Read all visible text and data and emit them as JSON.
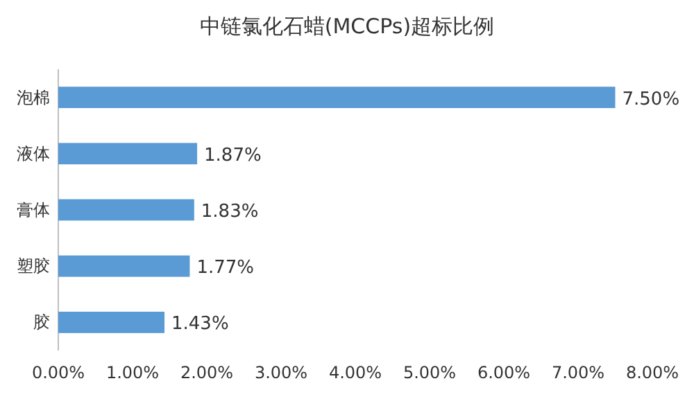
{
  "chart_data": {
    "type": "bar",
    "orientation": "horizontal",
    "title": "中链氯化石蜡(MCCPs)超标比例",
    "categories": [
      "泡棉",
      "液体",
      "膏体",
      "塑胶",
      "胶"
    ],
    "values": [
      7.5,
      1.87,
      1.83,
      1.77,
      1.43
    ],
    "color": "#5b9bd5",
    "value_labels": [
      "7.50%",
      "1.87%",
      "1.83%",
      "1.77%",
      "1.43%"
    ],
    "xlim": [
      0,
      8
    ],
    "xticks": [
      {
        "value": 0,
        "label": "0.00%"
      },
      {
        "value": 1,
        "label": "1.00%"
      },
      {
        "value": 2,
        "label": "2.00%"
      },
      {
        "value": 3,
        "label": "3.00%"
      },
      {
        "value": 4,
        "label": "4.00%"
      },
      {
        "value": 5,
        "label": "5.00%"
      },
      {
        "value": 6,
        "label": "6.00%"
      },
      {
        "value": 7,
        "label": "7.00%"
      },
      {
        "value": 8,
        "label": "8.00%"
      }
    ],
    "grid": false
  }
}
